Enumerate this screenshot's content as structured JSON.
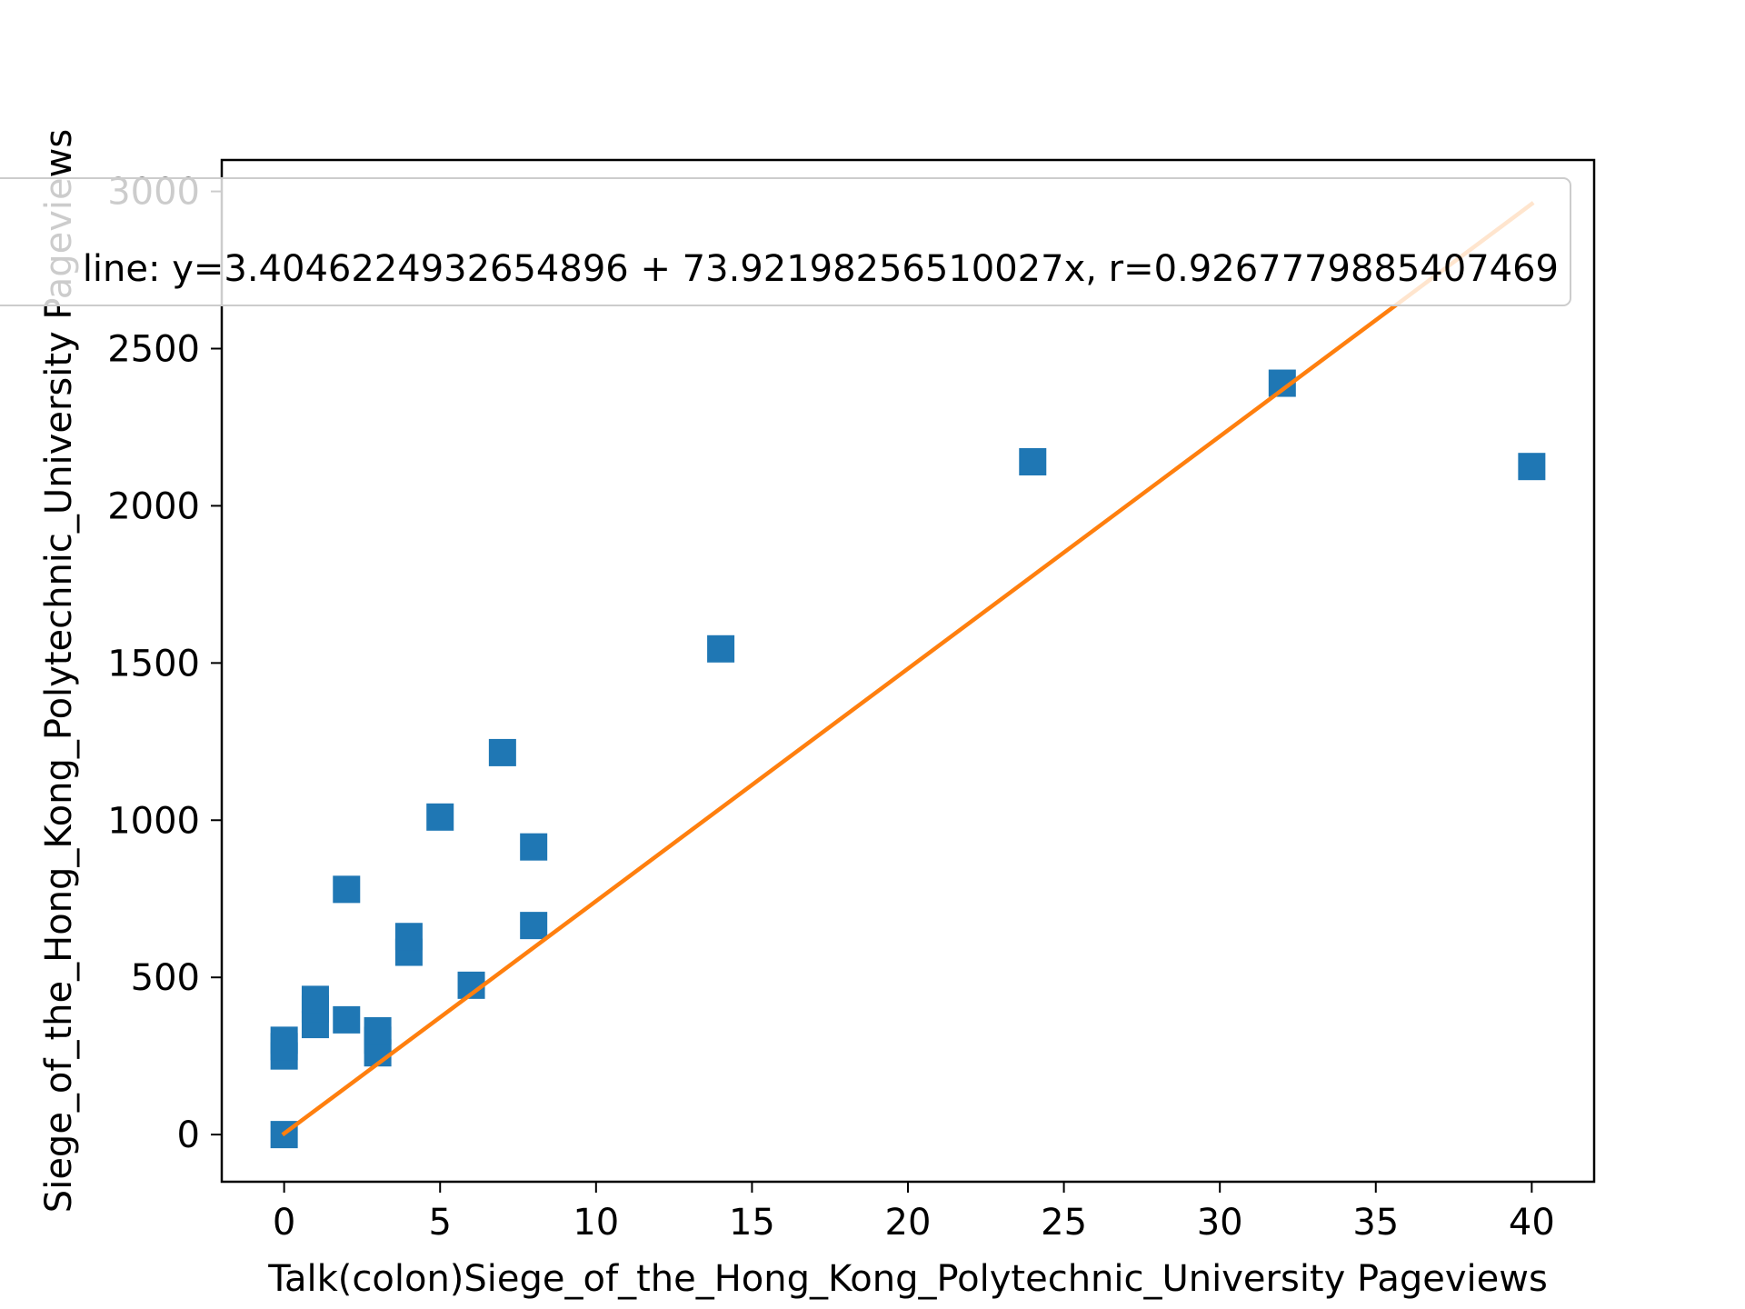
{
  "chart_data": {
    "type": "scatter",
    "title": "",
    "xlabel": "Talk(colon)Siege_of_the_Hong_Kong_Polytechnic_University Pageviews",
    "ylabel": "Siege_of_the_Hong_Kong_Polytechnic_University Pageviews",
    "xlim": [
      -2,
      42
    ],
    "ylim": [
      -150,
      3100
    ],
    "xticks": [
      0,
      5,
      10,
      15,
      20,
      25,
      30,
      35,
      40
    ],
    "yticks": [
      0,
      500,
      1000,
      1500,
      2000,
      2500,
      3000
    ],
    "grid": false,
    "legend": {
      "placement": "top-center",
      "text": "line: y=3.4046224932654896 + 73.92198256510027x, r=0.9267779885407469"
    },
    "series": [
      {
        "type": "scatter",
        "marker": "square",
        "color": "#1f77b4",
        "points": [
          {
            "x": 0,
            "y": 0
          },
          {
            "x": 0,
            "y": 250
          },
          {
            "x": 0,
            "y": 280
          },
          {
            "x": 0,
            "y": 300
          },
          {
            "x": 1,
            "y": 350
          },
          {
            "x": 1,
            "y": 400
          },
          {
            "x": 1,
            "y": 430
          },
          {
            "x": 2,
            "y": 365
          },
          {
            "x": 2,
            "y": 780
          },
          {
            "x": 3,
            "y": 260
          },
          {
            "x": 3,
            "y": 300
          },
          {
            "x": 3,
            "y": 330
          },
          {
            "x": 4,
            "y": 580
          },
          {
            "x": 4,
            "y": 630
          },
          {
            "x": 5,
            "y": 1010
          },
          {
            "x": 6,
            "y": 475
          },
          {
            "x": 7,
            "y": 1215
          },
          {
            "x": 8,
            "y": 665
          },
          {
            "x": 8,
            "y": 915
          },
          {
            "x": 14,
            "y": 1545
          },
          {
            "x": 24,
            "y": 2140
          },
          {
            "x": 32,
            "y": 2390
          },
          {
            "x": 40,
            "y": 2125
          }
        ]
      },
      {
        "type": "line",
        "color": "#ff7f0e",
        "intercept": 3.4046224932654896,
        "slope": 73.92198256510027,
        "x_range": [
          0,
          40
        ]
      }
    ]
  }
}
